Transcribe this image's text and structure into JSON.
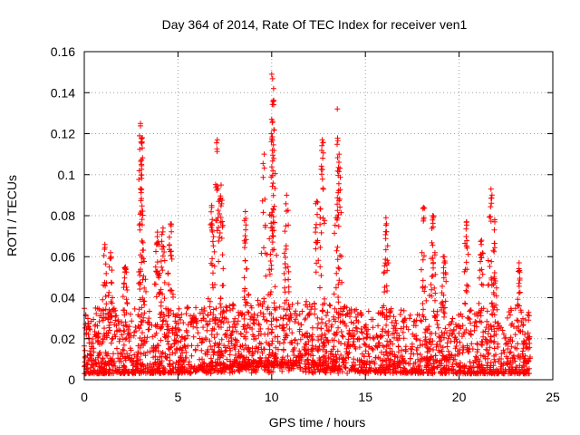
{
  "chart_data": {
    "type": "scatter",
    "title": "Day 364 of 2014, Rate Of TEC Index for receiver ven1",
    "xlabel": "GPS time / hours",
    "ylabel": "ROTI / TECUs",
    "xlim": [
      0,
      25
    ],
    "ylim": [
      0,
      0.16
    ],
    "x_ticks": [
      0,
      5,
      10,
      15,
      20,
      25
    ],
    "x_tick_labels": [
      "0",
      "5",
      "10",
      "15",
      "20",
      "25"
    ],
    "y_ticks": [
      0,
      0.02,
      0.04,
      0.06,
      0.08,
      0.1,
      0.12,
      0.14,
      0.16
    ],
    "y_tick_labels": [
      "0",
      "0.02",
      "0.04",
      "0.06",
      "0.08",
      "0.1",
      "0.12",
      "0.14",
      "0.16"
    ],
    "grid": true,
    "marker": "+",
    "series": [
      {
        "name": "ven1",
        "color": "#ff0000",
        "x_range": [
          0,
          23.8
        ],
        "typical_range": [
          0.003,
          0.035
        ],
        "peaks": [
          {
            "x": 1.1,
            "y": 0.066
          },
          {
            "x": 1.4,
            "y": 0.062
          },
          {
            "x": 2.2,
            "y": 0.055
          },
          {
            "x": 3.0,
            "y": 0.125
          },
          {
            "x": 3.1,
            "y": 0.118
          },
          {
            "x": 3.05,
            "y": 0.105
          },
          {
            "x": 3.9,
            "y": 0.072
          },
          {
            "x": 4.2,
            "y": 0.074
          },
          {
            "x": 4.6,
            "y": 0.076
          },
          {
            "x": 6.8,
            "y": 0.085
          },
          {
            "x": 7.1,
            "y": 0.117
          },
          {
            "x": 7.3,
            "y": 0.095
          },
          {
            "x": 8.6,
            "y": 0.082
          },
          {
            "x": 9.6,
            "y": 0.11
          },
          {
            "x": 10.0,
            "y": 0.149
          },
          {
            "x": 10.1,
            "y": 0.142
          },
          {
            "x": 10.05,
            "y": 0.126
          },
          {
            "x": 10.8,
            "y": 0.09
          },
          {
            "x": 12.7,
            "y": 0.117
          },
          {
            "x": 12.4,
            "y": 0.087
          },
          {
            "x": 13.5,
            "y": 0.132
          },
          {
            "x": 13.6,
            "y": 0.11
          },
          {
            "x": 16.1,
            "y": 0.079
          },
          {
            "x": 18.1,
            "y": 0.084
          },
          {
            "x": 18.6,
            "y": 0.08
          },
          {
            "x": 20.4,
            "y": 0.077
          },
          {
            "x": 21.7,
            "y": 0.093
          },
          {
            "x": 21.9,
            "y": 0.078
          },
          {
            "x": 21.2,
            "y": 0.068
          },
          {
            "x": 23.2,
            "y": 0.057
          },
          {
            "x": 19.2,
            "y": 0.06
          }
        ]
      }
    ]
  }
}
